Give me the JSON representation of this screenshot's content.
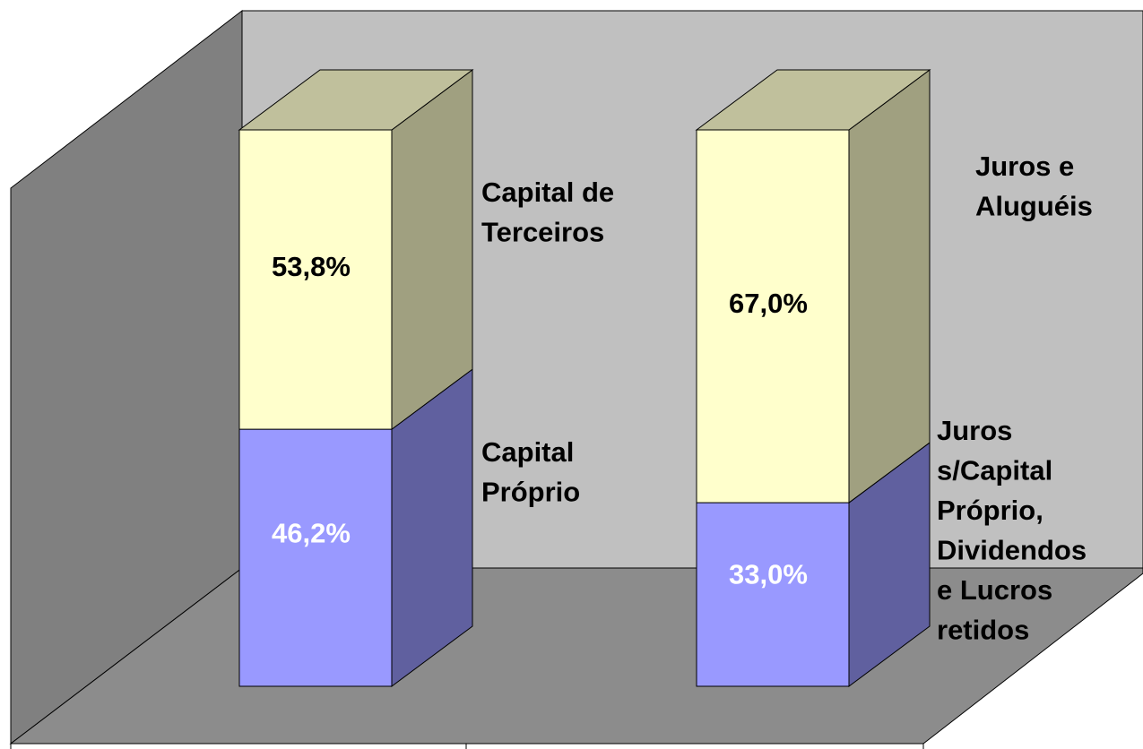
{
  "chart_data": {
    "type": "bar",
    "stacked": true,
    "categories": [
      null,
      null
    ],
    "ylim": [
      0,
      100
    ],
    "series": [
      {
        "color": "#9999ff",
        "side_color": "#60609f",
        "label_color": "#ffffff",
        "values": [
          46.2,
          33.0
        ],
        "value_labels": [
          "46,2%",
          "33,0%"
        ],
        "segment_labels": [
          [
            "Capital",
            "Próprio"
          ],
          [
            "Juros",
            "s/Capital",
            "Próprio,",
            "Dividendos",
            "e Lucros",
            "retidos"
          ]
        ]
      },
      {
        "color": "#ffffcc",
        "side_color": "#a0a080",
        "top_color": "#c0c09c",
        "label_color": "#000000",
        "values": [
          53.8,
          67.0
        ],
        "value_labels": [
          "53,8%",
          "67,0%"
        ],
        "segment_labels": [
          [
            "Capital de",
            "Terceiros"
          ],
          [
            "Juros e",
            "Aluguéis"
          ]
        ]
      }
    ]
  }
}
